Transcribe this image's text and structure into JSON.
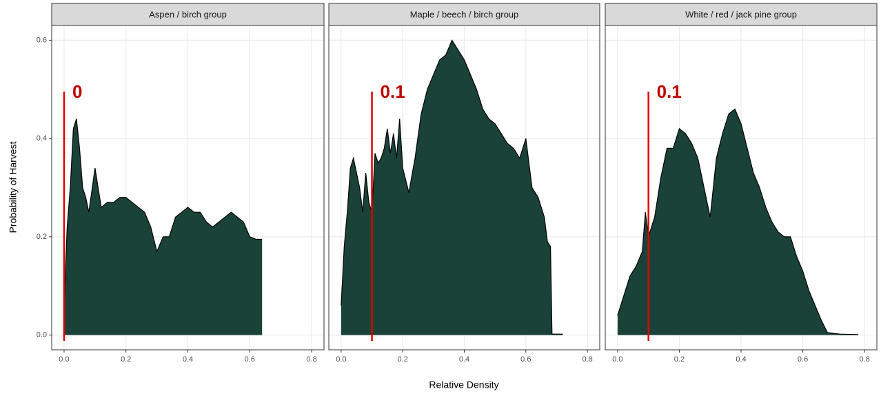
{
  "chart_data": {
    "type": "area",
    "xlabel": "Relative Density",
    "ylabel": "Probability of Harvest",
    "xlim": [
      -0.04,
      0.84
    ],
    "ylim": [
      -0.03,
      0.63
    ],
    "xticks": [
      {
        "value": 0,
        "label": "0.0"
      },
      0.2,
      0.4,
      0.6,
      0.8
    ],
    "yticks": [
      {
        "value": 0,
        "label": "0.0"
      },
      0.2,
      0.4,
      0.6
    ],
    "grid": true,
    "color": "#1b4239",
    "line_color": "#000000",
    "threshold_color": "#e00000",
    "facets": [
      {
        "title": "Aspen / birch group",
        "threshold": 0,
        "x": [
          0,
          0.01,
          0.02,
          0.03,
          0.04,
          0.05,
          0.06,
          0.07,
          0.08,
          0.1,
          0.12,
          0.14,
          0.16,
          0.18,
          0.2,
          0.22,
          0.24,
          0.26,
          0.28,
          0.3,
          0.32,
          0.34,
          0.36,
          0.38,
          0.4,
          0.42,
          0.44,
          0.46,
          0.48,
          0.5,
          0.52,
          0.54,
          0.56,
          0.58,
          0.6,
          0.62,
          0.64
        ],
        "values": [
          0.06,
          0.22,
          0.3,
          0.42,
          0.44,
          0.38,
          0.3,
          0.28,
          0.25,
          0.34,
          0.26,
          0.27,
          0.27,
          0.28,
          0.28,
          0.27,
          0.26,
          0.25,
          0.22,
          0.17,
          0.2,
          0.2,
          0.24,
          0.25,
          0.26,
          0.25,
          0.25,
          0.23,
          0.22,
          0.23,
          0.24,
          0.25,
          0.24,
          0.23,
          0.2,
          0.195,
          0.195
        ]
      },
      {
        "title": "Maple / beech / birch group",
        "threshold": 0.1,
        "x": [
          0,
          0.01,
          0.02,
          0.03,
          0.04,
          0.05,
          0.06,
          0.07,
          0.08,
          0.09,
          0.1,
          0.11,
          0.12,
          0.13,
          0.14,
          0.15,
          0.16,
          0.17,
          0.18,
          0.19,
          0.2,
          0.22,
          0.24,
          0.26,
          0.28,
          0.3,
          0.32,
          0.34,
          0.36,
          0.38,
          0.4,
          0.42,
          0.44,
          0.46,
          0.48,
          0.5,
          0.52,
          0.54,
          0.56,
          0.58,
          0.6,
          0.62,
          0.64,
          0.66,
          0.67,
          0.68,
          0.685,
          0.72
        ],
        "values": [
          0.06,
          0.18,
          0.25,
          0.34,
          0.36,
          0.33,
          0.3,
          0.25,
          0.33,
          0.27,
          0.25,
          0.37,
          0.35,
          0.36,
          0.38,
          0.42,
          0.37,
          0.41,
          0.36,
          0.44,
          0.34,
          0.29,
          0.36,
          0.45,
          0.5,
          0.53,
          0.56,
          0.57,
          0.6,
          0.58,
          0.56,
          0.53,
          0.5,
          0.46,
          0.44,
          0.43,
          0.41,
          0.39,
          0.38,
          0.36,
          0.4,
          0.3,
          0.28,
          0.24,
          0.19,
          0.18,
          0.002,
          0.002
        ]
      },
      {
        "title": "White / red / jack pine group",
        "threshold": 0.1,
        "x": [
          0,
          0.02,
          0.04,
          0.06,
          0.08,
          0.09,
          0.1,
          0.12,
          0.14,
          0.16,
          0.18,
          0.2,
          0.22,
          0.24,
          0.26,
          0.28,
          0.3,
          0.32,
          0.34,
          0.36,
          0.38,
          0.4,
          0.42,
          0.44,
          0.46,
          0.48,
          0.5,
          0.52,
          0.54,
          0.56,
          0.58,
          0.6,
          0.62,
          0.64,
          0.66,
          0.68,
          0.72,
          0.78
        ],
        "values": [
          0.04,
          0.08,
          0.12,
          0.14,
          0.17,
          0.25,
          0.2,
          0.24,
          0.32,
          0.38,
          0.38,
          0.42,
          0.41,
          0.39,
          0.36,
          0.3,
          0.24,
          0.36,
          0.41,
          0.45,
          0.46,
          0.43,
          0.38,
          0.33,
          0.3,
          0.26,
          0.23,
          0.21,
          0.2,
          0.2,
          0.16,
          0.13,
          0.09,
          0.06,
          0.03,
          0.005,
          0.002,
          0.001
        ]
      }
    ]
  }
}
